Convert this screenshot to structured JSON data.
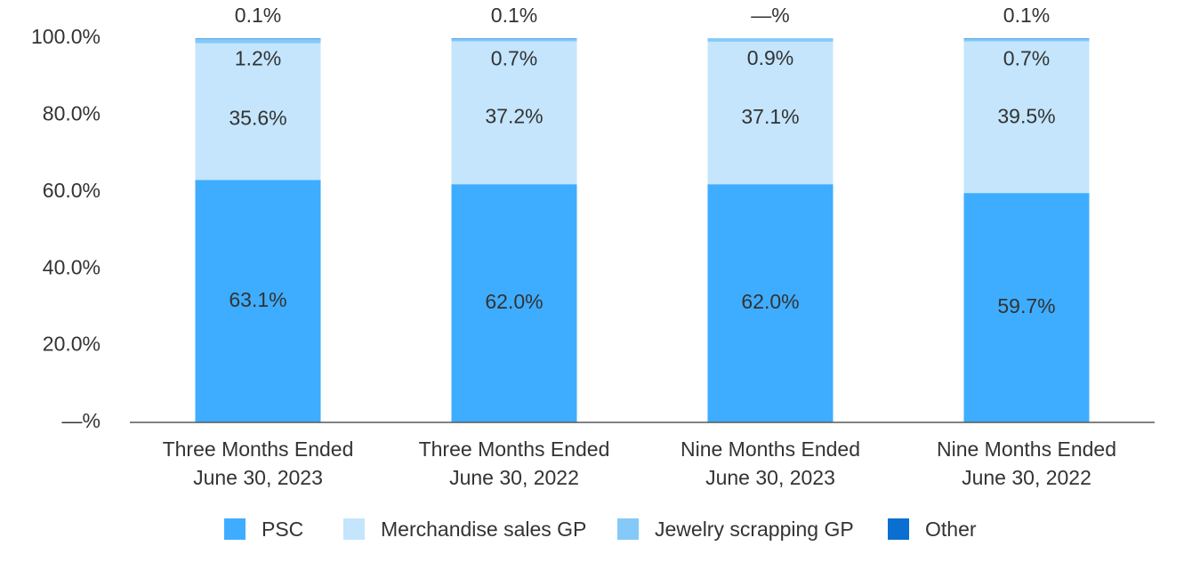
{
  "chart_data": {
    "type": "bar",
    "stacked": true,
    "categories": [
      [
        "Three Months Ended",
        "June 30, 2023"
      ],
      [
        "Three Months Ended",
        "June 30, 2022"
      ],
      [
        "Nine Months Ended",
        "June 30, 2023"
      ],
      [
        "Nine Months Ended",
        "June 30, 2022"
      ]
    ],
    "series": [
      {
        "name": "PSC",
        "color": "#3EADFF",
        "values": [
          63.1,
          62.0,
          62.0,
          59.7
        ],
        "labels": [
          "63.1%",
          "62.0%",
          "62.0%",
          "59.7%"
        ]
      },
      {
        "name": "Merchandise sales GP",
        "color": "#C4E5FC",
        "values": [
          35.6,
          37.2,
          37.1,
          39.5
        ],
        "labels": [
          "35.6%",
          "37.2%",
          "37.1%",
          "39.5%"
        ]
      },
      {
        "name": "Jewelry scrapping GP",
        "color": "#84C9F8",
        "values": [
          1.2,
          0.7,
          0.9,
          0.7
        ],
        "labels": [
          "1.2%",
          "0.7%",
          "0.9%",
          "0.7%"
        ]
      },
      {
        "name": "Other",
        "color": "#0A6FD0",
        "values": [
          0.1,
          0.1,
          0.0,
          0.1
        ],
        "labels": [
          "0.1%",
          "0.1%",
          "—%",
          "0.1%"
        ]
      }
    ],
    "ylim": [
      0,
      100
    ],
    "yticks": [
      "—%",
      "20.0%",
      "40.0%",
      "60.0%",
      "80.0%",
      "100.0%"
    ],
    "legend_position": "bottom",
    "grid": false
  }
}
